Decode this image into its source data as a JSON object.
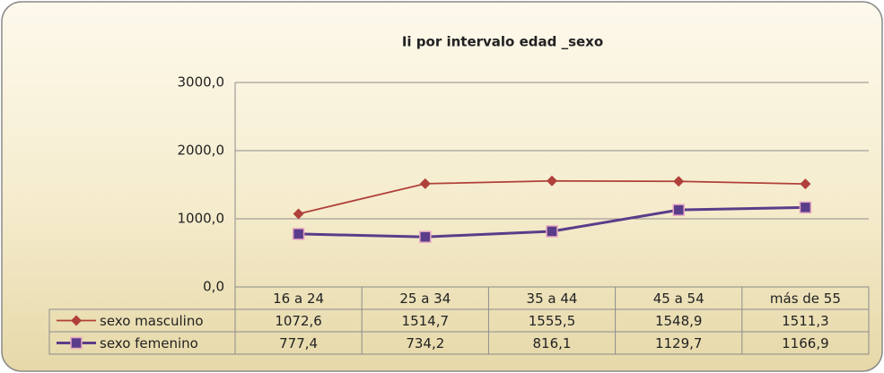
{
  "chart_data": {
    "type": "line",
    "title": "Ii por intervalo edad _sexo",
    "categories": [
      "16 a 24",
      "25 a 34",
      "35 a 44",
      "45 a 54",
      "más de 55"
    ],
    "series": [
      {
        "name": "sexo masculino",
        "color": "#b0403a",
        "marker": "diamond",
        "values": [
          1072.6,
          1514.7,
          1555.5,
          1548.9,
          1511.3
        ],
        "value_labels": [
          "1072,6",
          "1514,7",
          "1555,5",
          "1548,9",
          "1511,3"
        ]
      },
      {
        "name": "sexo femenino",
        "color": "#5a3d8a",
        "marker": "square",
        "values": [
          777.4,
          734.2,
          816.1,
          1129.7,
          1166.9
        ],
        "value_labels": [
          "777,4",
          "734,2",
          "816,1",
          "1129,7",
          "1166,9"
        ]
      }
    ],
    "ylim": [
      0,
      3000
    ],
    "yticks": [
      {
        "value": 0,
        "label": "0,0"
      },
      {
        "value": 1000,
        "label": "1000,0"
      },
      {
        "value": 2000,
        "label": "2000,0"
      },
      {
        "value": 3000,
        "label": "3000,0"
      }
    ],
    "grid": true
  }
}
